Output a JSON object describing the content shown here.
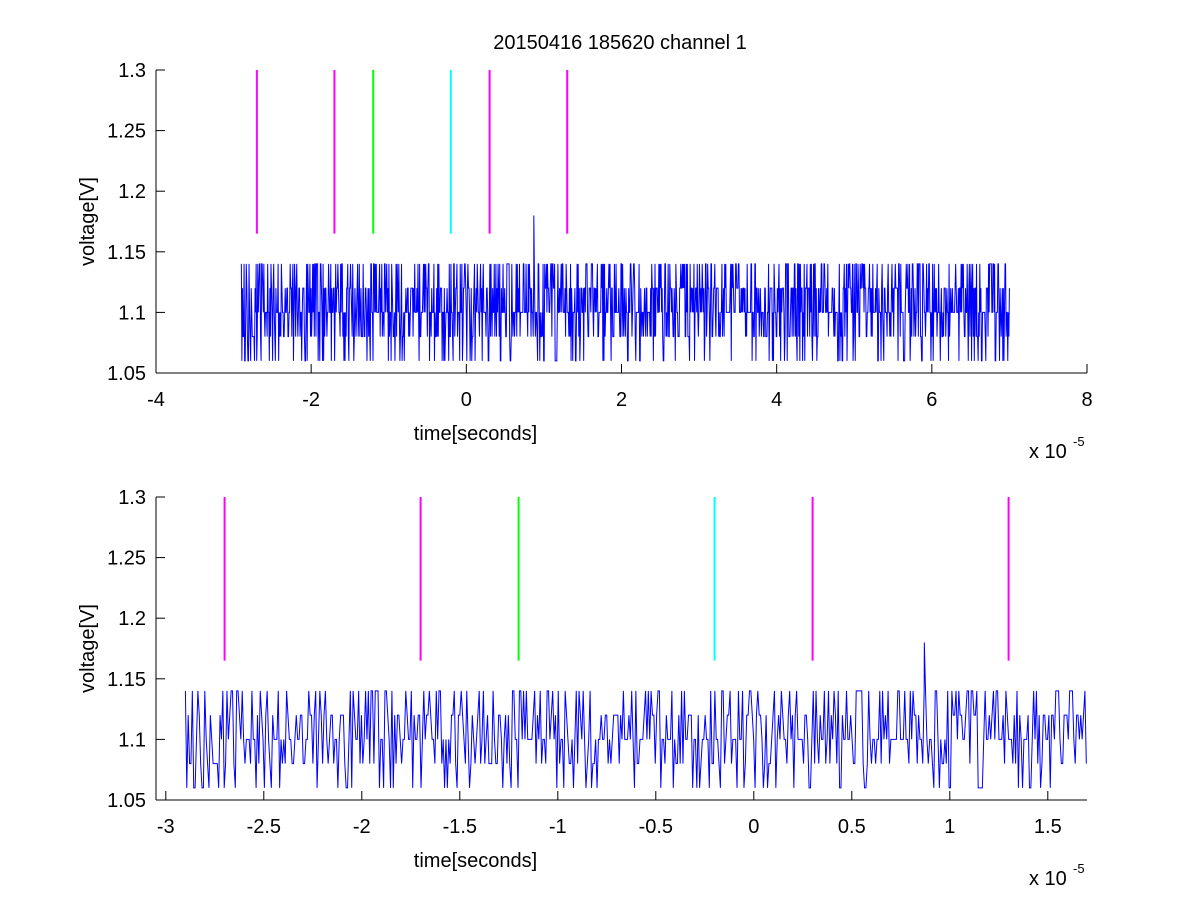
{
  "figure_title": "20150416 185620 channel 1",
  "chart_data": [
    {
      "type": "line",
      "title": "20150416 185620 channel 1",
      "xlabel": "time[seconds]",
      "ylabel": "voltage[V]",
      "x_multiplier": "x 10",
      "x_exponent": "-5",
      "xlim": [
        -4,
        8
      ],
      "ylim": [
        1.05,
        1.3
      ],
      "xticks": [
        -4,
        -2,
        0,
        2,
        4,
        6,
        8
      ],
      "xtick_labels": [
        "-4",
        "-2",
        "0",
        "2",
        "4",
        "6",
        "8"
      ],
      "yticks": [
        1.05,
        1.1,
        1.15,
        1.2,
        1.25,
        1.3
      ],
      "ytick_labels": [
        "1.05",
        "1.1",
        "1.15",
        "1.2",
        "1.25",
        "1.3"
      ],
      "grid": false,
      "signal": {
        "x_range": [
          -2.9,
          7.0
        ],
        "baseline": 1.1,
        "levels": [
          1.06,
          1.08,
          1.1,
          1.12,
          1.14
        ],
        "spike": {
          "x": 0.87,
          "y": 1.18
        },
        "color": "#0000ff"
      },
      "markers": [
        {
          "x": -2.7,
          "y_range": [
            1.165,
            1.3
          ],
          "color": "#ff00ff"
        },
        {
          "x": -1.7,
          "y_range": [
            1.165,
            1.3
          ],
          "color": "#ff00ff"
        },
        {
          "x": -1.2,
          "y_range": [
            1.165,
            1.3
          ],
          "color": "#00ff00"
        },
        {
          "x": -0.2,
          "y_range": [
            1.165,
            1.3
          ],
          "color": "#00ffff"
        },
        {
          "x": 0.3,
          "y_range": [
            1.165,
            1.3
          ],
          "color": "#ff00ff"
        },
        {
          "x": 1.3,
          "y_range": [
            1.165,
            1.3
          ],
          "color": "#ff00ff"
        }
      ]
    },
    {
      "type": "line",
      "title": "",
      "xlabel": "time[seconds]",
      "ylabel": "voltage[V]",
      "x_multiplier": "x 10",
      "x_exponent": "-5",
      "xlim": [
        -3.05,
        1.7
      ],
      "ylim": [
        1.05,
        1.3
      ],
      "xticks": [
        -3,
        -2.5,
        -2,
        -1.5,
        -1,
        -0.5,
        0,
        0.5,
        1,
        1.5
      ],
      "xtick_labels": [
        "-3",
        "-2.5",
        "-2",
        "-1.5",
        "-1",
        "-0.5",
        "0",
        "0.5",
        "1",
        "1.5"
      ],
      "yticks": [
        1.05,
        1.1,
        1.15,
        1.2,
        1.25,
        1.3
      ],
      "ytick_labels": [
        "1.05",
        "1.1",
        "1.15",
        "1.2",
        "1.25",
        "1.3"
      ],
      "grid": false,
      "signal": {
        "x_range": [
          -2.9,
          1.7
        ],
        "baseline": 1.1,
        "levels": [
          1.06,
          1.08,
          1.1,
          1.12,
          1.14
        ],
        "spike": {
          "x": 0.87,
          "y": 1.18
        },
        "color": "#0000ff"
      },
      "markers": [
        {
          "x": -2.7,
          "y_range": [
            1.165,
            1.3
          ],
          "color": "#ff00ff"
        },
        {
          "x": -1.7,
          "y_range": [
            1.165,
            1.3
          ],
          "color": "#ff00ff"
        },
        {
          "x": -1.2,
          "y_range": [
            1.165,
            1.3
          ],
          "color": "#00ff00"
        },
        {
          "x": -0.2,
          "y_range": [
            1.165,
            1.3
          ],
          "color": "#00ffff"
        },
        {
          "x": 0.3,
          "y_range": [
            1.165,
            1.3
          ],
          "color": "#ff00ff"
        },
        {
          "x": 1.3,
          "y_range": [
            1.165,
            1.3
          ],
          "color": "#ff00ff"
        }
      ]
    }
  ]
}
